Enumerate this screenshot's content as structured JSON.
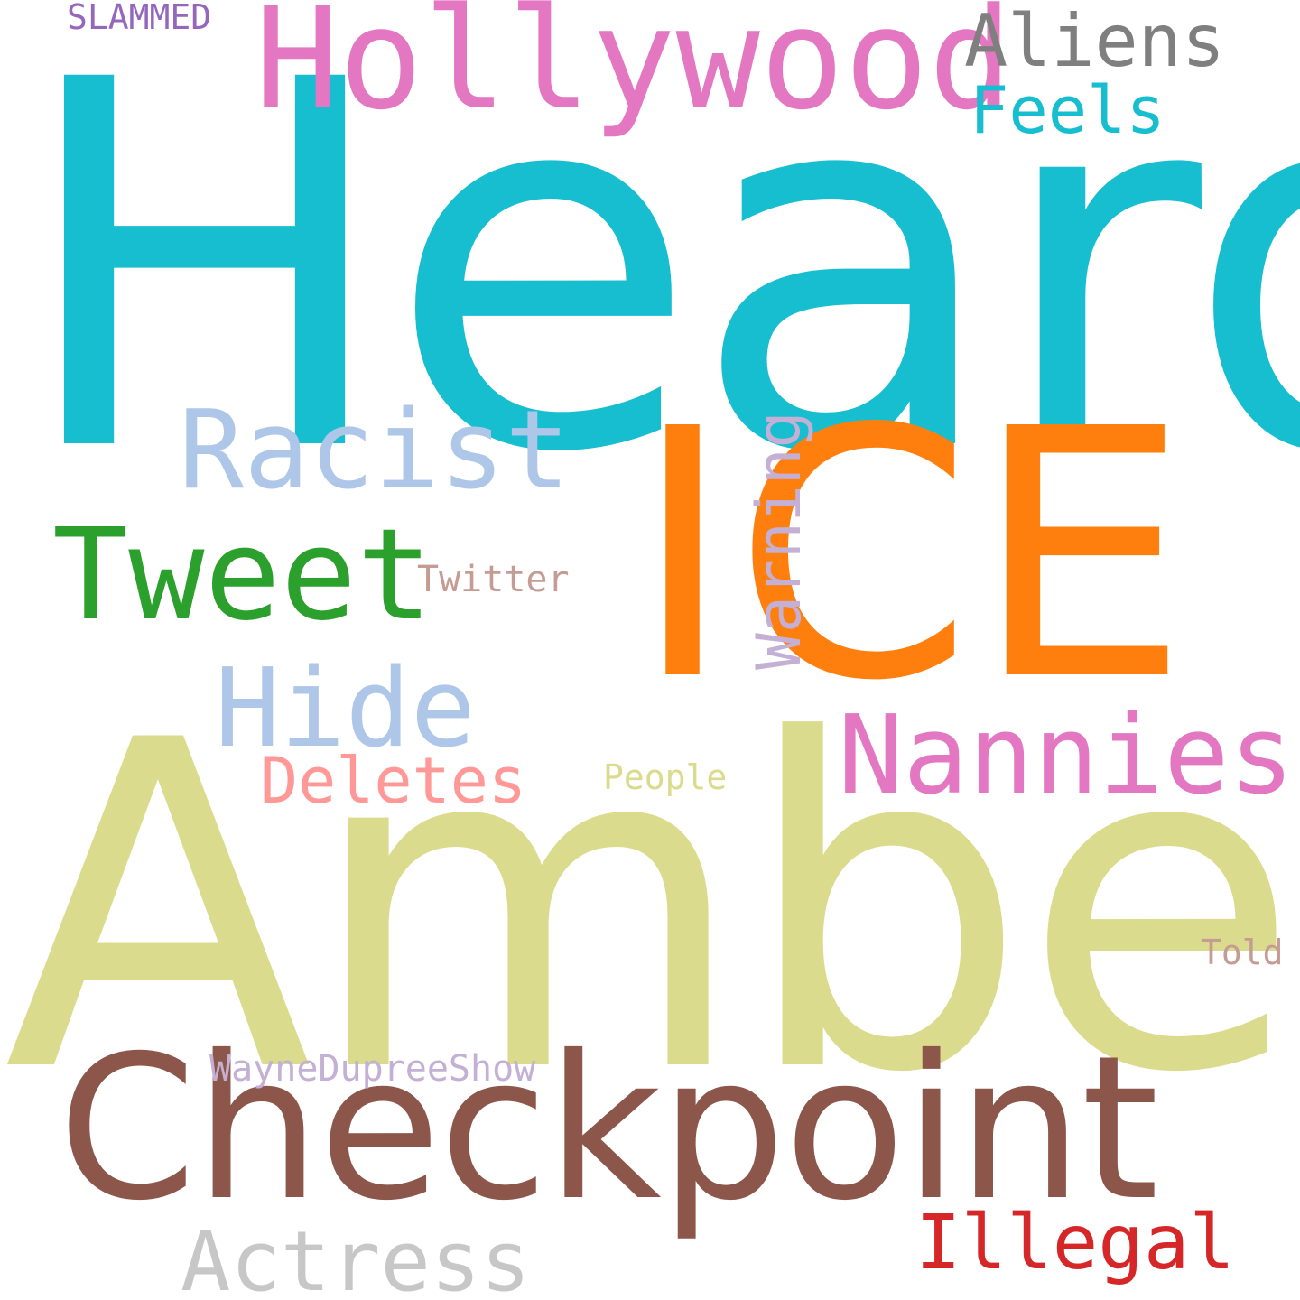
{
  "words": {
    "heard": {
      "text": "Heard",
      "color": "#17becf"
    },
    "ice": {
      "text": "ICE",
      "color": "#ff7f0e"
    },
    "amber": {
      "text": "Amber",
      "color": "#dbdb8d"
    },
    "checkpoint": {
      "text": "Checkpoint",
      "color": "#8c564b"
    },
    "hollywood": {
      "text": "Hollywood",
      "color": "#e377c2"
    },
    "aliens": {
      "text": "Aliens",
      "color": "#7f7f7f"
    },
    "feels": {
      "text": "Feels",
      "color": "#17becf"
    },
    "warning": {
      "text": "Warning",
      "color": "#c5b0d5"
    },
    "racist": {
      "text": "Racist",
      "color": "#aec7e8"
    },
    "tweet": {
      "text": "Tweet",
      "color": "#2ca02c"
    },
    "twitter": {
      "text": "Twitter",
      "color": "#c49c94"
    },
    "hide": {
      "text": "Hide",
      "color": "#aec7e8"
    },
    "nannies": {
      "text": "Nannies",
      "color": "#e377c2"
    },
    "deletes": {
      "text": "Deletes",
      "color": "#ff9896"
    },
    "people": {
      "text": "People",
      "color": "#dbdb8d"
    },
    "slammed": {
      "text": "SLAMMED",
      "color": "#9467bd"
    },
    "told": {
      "text": "Told",
      "color": "#c49c94"
    },
    "wayne": {
      "text": "WayneDupreeShow",
      "color": "#c5b0d5"
    },
    "actress": {
      "text": "Actress",
      "color": "#c7c7c7"
    },
    "illegal": {
      "text": "Illegal",
      "color": "#d62728"
    }
  }
}
